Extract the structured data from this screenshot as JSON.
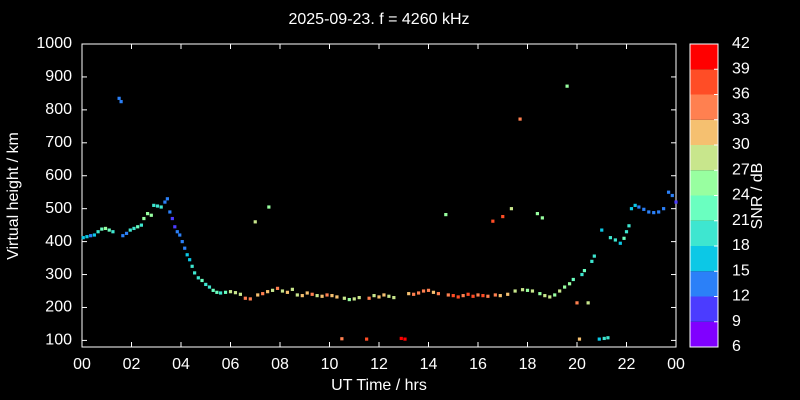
{
  "chart_data": {
    "type": "scatter",
    "title": "2025-09-23. f = 4260 kHz",
    "xlabel": "UT Time / hrs",
    "ylabel": "Virtual height / km",
    "colorbar_label": "SNR / dB",
    "xlim": [
      0,
      24
    ],
    "ylim": [
      80,
      1000
    ],
    "xticks": [
      {
        "value": 0,
        "label": "00"
      },
      {
        "value": 2,
        "label": "02"
      },
      {
        "value": 4,
        "label": "04"
      },
      {
        "value": 6,
        "label": "06"
      },
      {
        "value": 8,
        "label": "08"
      },
      10,
      12,
      14,
      16,
      18,
      20,
      22,
      {
        "value": 24,
        "label": "00"
      }
    ],
    "yticks": [
      100,
      200,
      300,
      400,
      500,
      600,
      700,
      800,
      900,
      1000
    ],
    "clim": [
      6,
      42
    ],
    "cticks": [
      6,
      9,
      12,
      15,
      18,
      21,
      24,
      27,
      30,
      33,
      36,
      39,
      42
    ],
    "colors": [
      "#8000ff",
      "#4b3cff",
      "#2b80f8",
      "#0cc8e6",
      "#3ee6d0",
      "#6affc0",
      "#98ffa0",
      "#c8e68c",
      "#f5c070",
      "#ff8050",
      "#ff4d26",
      "#ff0000"
    ],
    "x": [
      0.05,
      0.2,
      0.35,
      0.5,
      0.65,
      0.8,
      0.95,
      1.1,
      1.25,
      1.5,
      1.58,
      1.65,
      1.8,
      1.95,
      2.1,
      2.25,
      2.4,
      2.5,
      2.65,
      2.8,
      2.9,
      3.05,
      3.2,
      3.35,
      3.45,
      3.55,
      3.65,
      3.75,
      3.85,
      3.95,
      4.05,
      4.15,
      4.25,
      4.35,
      4.45,
      4.55,
      4.7,
      4.85,
      5.0,
      5.15,
      5.3,
      5.45,
      5.6,
      5.8,
      6.0,
      6.2,
      6.4,
      6.6,
      6.8,
      7.0,
      7.1,
      7.3,
      7.55,
      7.5,
      7.7,
      7.9,
      8.1,
      8.3,
      8.5,
      8.7,
      8.9,
      9.1,
      9.3,
      9.5,
      9.7,
      9.9,
      10.1,
      10.3,
      10.5,
      10.6,
      10.8,
      11.0,
      11.2,
      11.5,
      11.6,
      11.8,
      12.0,
      12.2,
      12.4,
      12.6,
      12.9,
      13.05,
      13.2,
      13.4,
      13.6,
      13.8,
      14.0,
      14.2,
      14.4,
      14.7,
      14.8,
      15.0,
      15.2,
      15.4,
      15.6,
      15.8,
      16.0,
      16.2,
      16.4,
      16.6,
      16.7,
      16.9,
      17.0,
      17.2,
      17.35,
      17.5,
      17.7,
      17.8,
      18.0,
      18.2,
      18.4,
      18.6,
      18.5,
      18.7,
      18.9,
      19.1,
      19.3,
      19.5,
      19.6,
      19.7,
      19.85,
      20.0,
      20.1,
      20.2,
      20.3,
      20.45,
      20.6,
      20.7,
      20.9,
      21.0,
      21.1,
      21.25,
      21.35,
      21.55,
      21.75,
      21.9,
      22.0,
      22.1,
      22.2,
      22.35,
      22.5,
      22.7,
      22.9,
      23.1,
      23.3,
      23.5,
      23.7,
      23.85,
      24.0
    ],
    "y": [
      412,
      415,
      418,
      420,
      430,
      438,
      440,
      435,
      430,
      835,
      825,
      418,
      425,
      435,
      440,
      445,
      450,
      470,
      485,
      480,
      510,
      508,
      505,
      520,
      530,
      490,
      470,
      445,
      430,
      420,
      400,
      380,
      360,
      345,
      325,
      305,
      290,
      282,
      270,
      262,
      252,
      246,
      244,
      246,
      248,
      245,
      240,
      228,
      226,
      460,
      238,
      242,
      505,
      248,
      252,
      258,
      250,
      246,
      255,
      238,
      236,
      244,
      240,
      236,
      234,
      238,
      236,
      232,
      105,
      228,
      224,
      226,
      230,
      104,
      228,
      236,
      232,
      238,
      234,
      230,
      106,
      104,
      242,
      240,
      244,
      250,
      252,
      246,
      242,
      482,
      238,
      236,
      232,
      236,
      240,
      234,
      238,
      236,
      234,
      462,
      238,
      236,
      476,
      240,
      500,
      250,
      772,
      254,
      252,
      250,
      485,
      472,
      242,
      236,
      232,
      238,
      250,
      262,
      872,
      272,
      285,
      214,
      104,
      300,
      312,
      214,
      340,
      356,
      104,
      435,
      106,
      108,
      412,
      405,
      395,
      410,
      430,
      448,
      500,
      510,
      505,
      498,
      490,
      488,
      490,
      500,
      550,
      540,
      520
    ],
    "snr": [
      15,
      16,
      14,
      17,
      20,
      22,
      24,
      23,
      20,
      14,
      14,
      12,
      13,
      20,
      19,
      22,
      20,
      25,
      24,
      26,
      19,
      18,
      20,
      14,
      12,
      12,
      10,
      11,
      13,
      12,
      13,
      14,
      15,
      16,
      18,
      19,
      20,
      21,
      19,
      20,
      22,
      21,
      20,
      22,
      28,
      27,
      29,
      33,
      34,
      28,
      32,
      34,
      25,
      30,
      28,
      33,
      27,
      30,
      28,
      29,
      32,
      30,
      33,
      29,
      31,
      34,
      32,
      30,
      33,
      27,
      26,
      27,
      28,
      38,
      34,
      27,
      32,
      30,
      28,
      27,
      40,
      39,
      31,
      33,
      34,
      35,
      33,
      31,
      34,
      26,
      35,
      37,
      36,
      35,
      37,
      38,
      35,
      36,
      33,
      38,
      34,
      32,
      37,
      30,
      27,
      27,
      33,
      27,
      25,
      27,
      24,
      25,
      26,
      28,
      27,
      26,
      27,
      25,
      26,
      24,
      22,
      33,
      31,
      20,
      21,
      27,
      19,
      18,
      17,
      16,
      19,
      20,
      18,
      19,
      16,
      21,
      20,
      19,
      15,
      16,
      13,
      14,
      13,
      14,
      13,
      14,
      12,
      13,
      11
    ]
  }
}
